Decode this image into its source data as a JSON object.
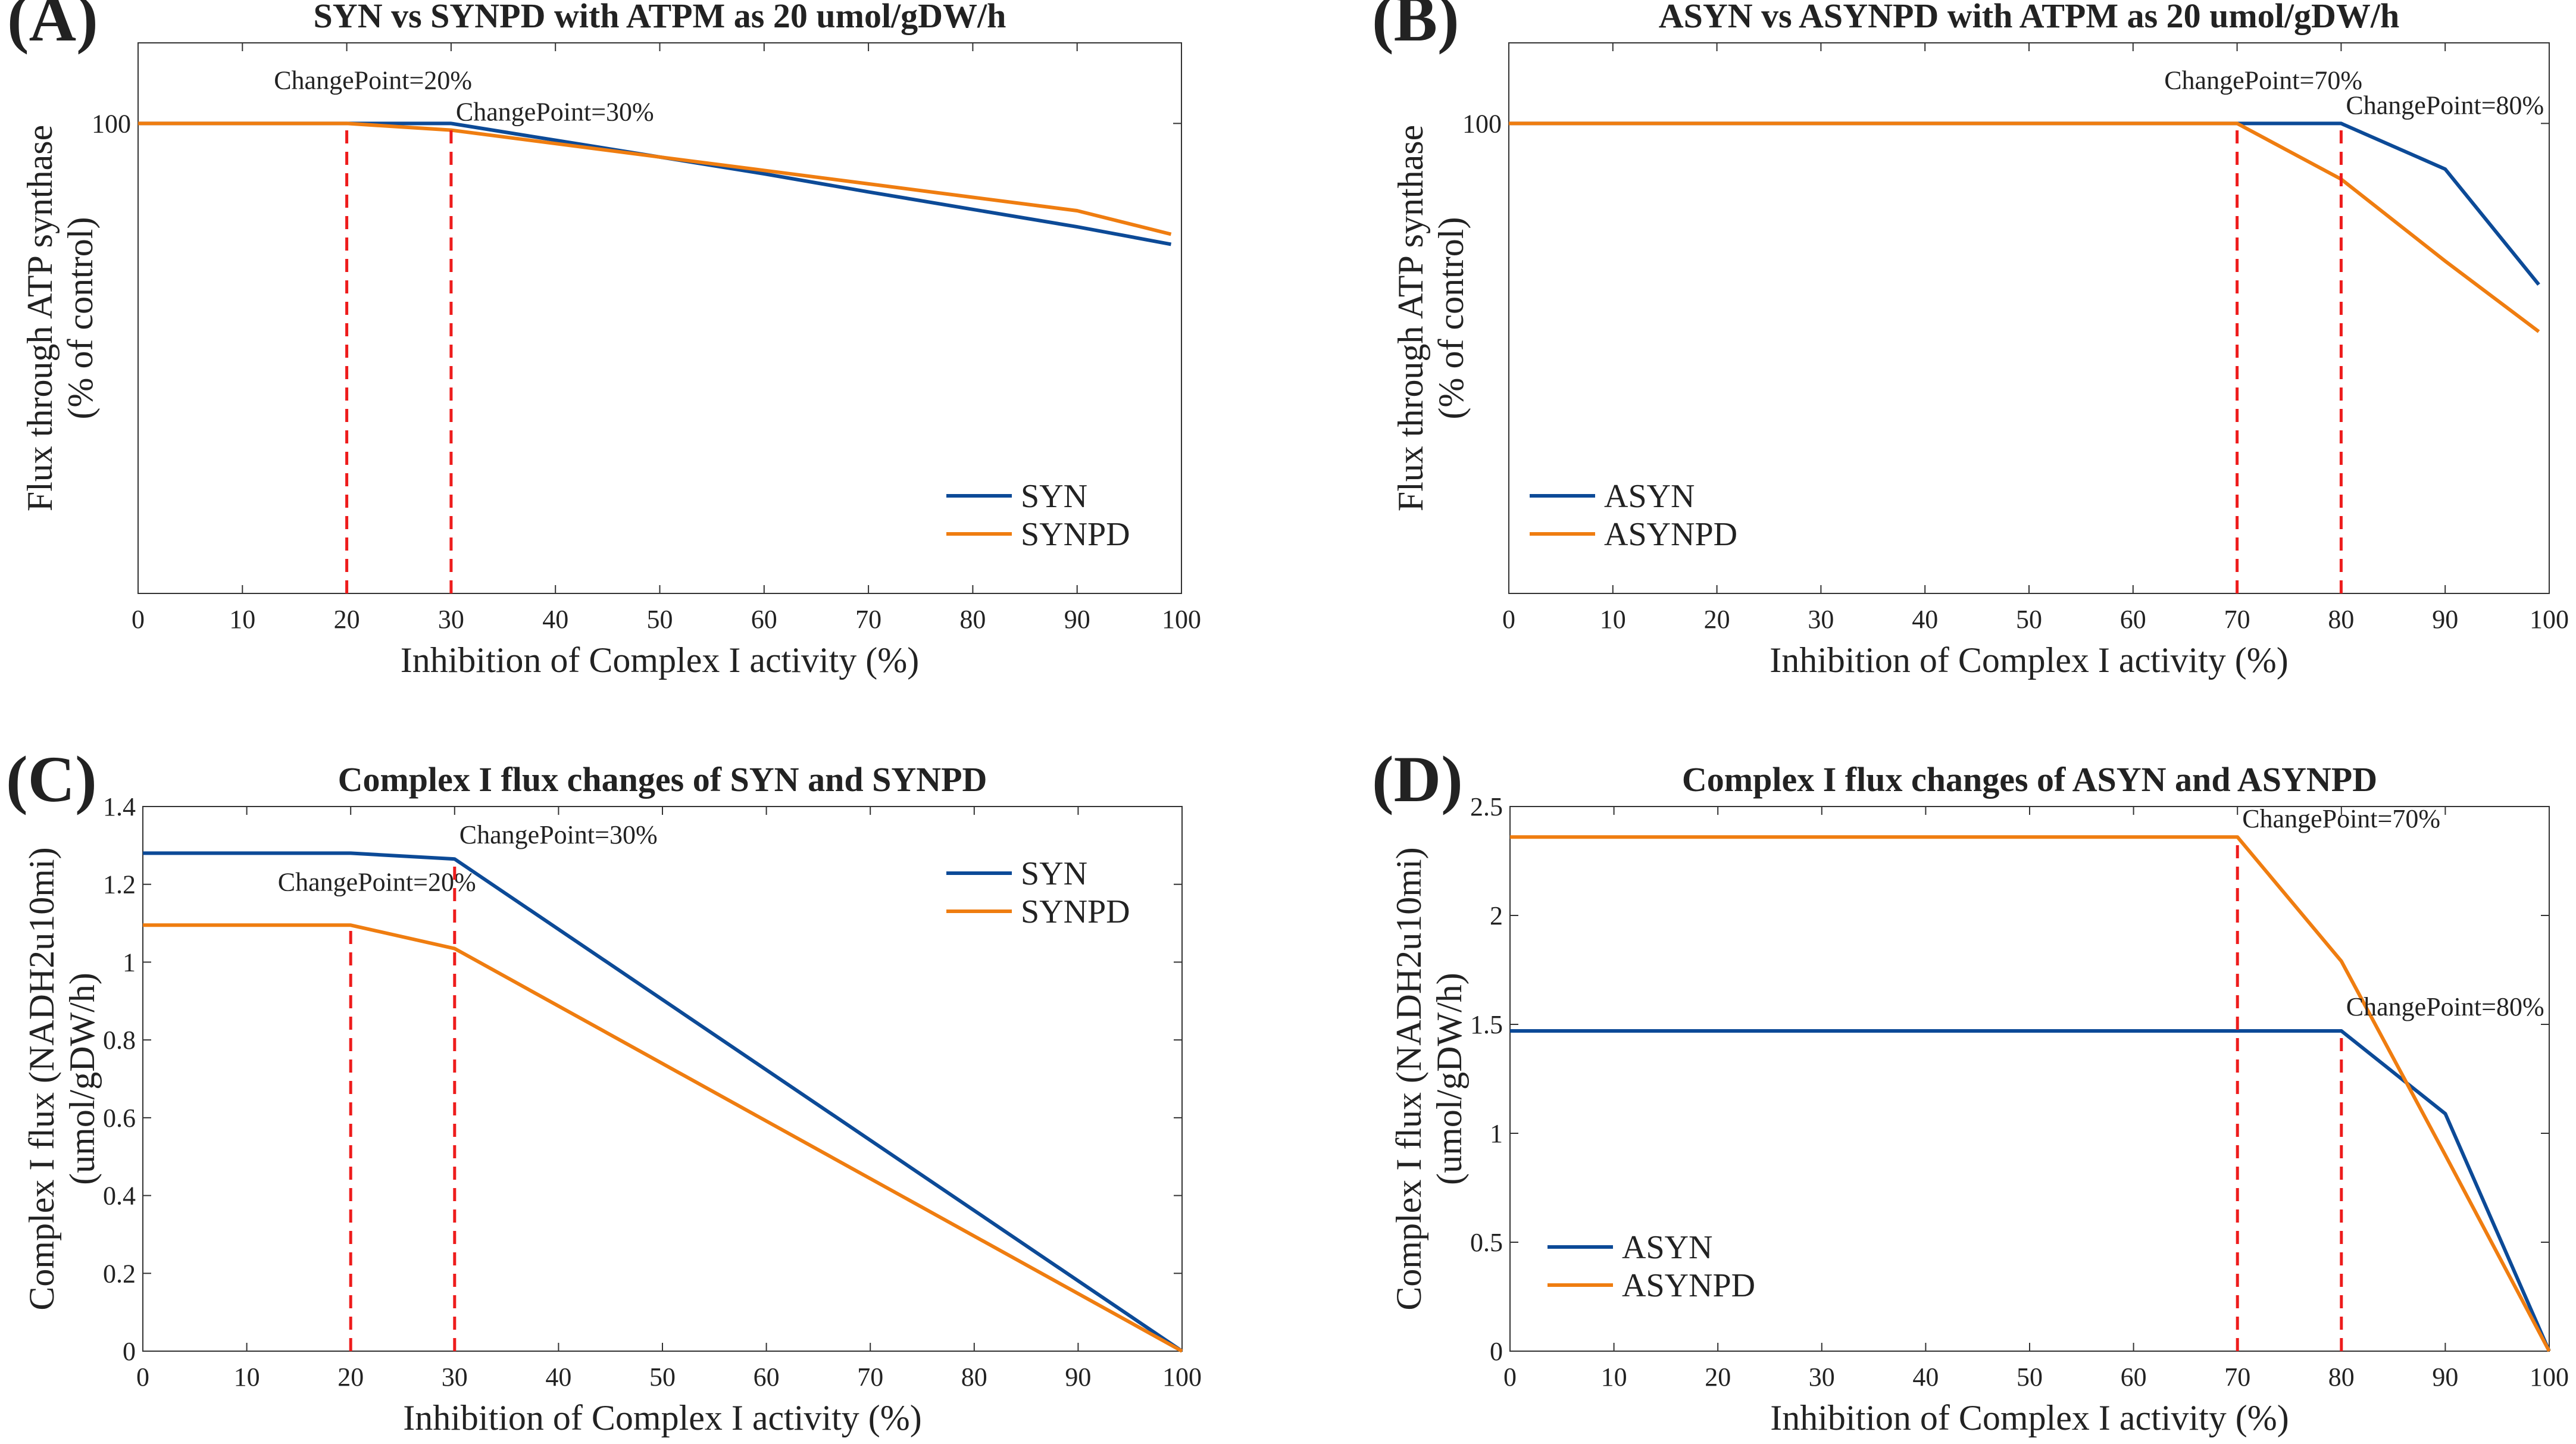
{
  "colors": {
    "blue": "#0c4a97",
    "orange": "#ef7d10",
    "changepoint": "#ee1c1c"
  },
  "chart_data": [
    {
      "type": "line",
      "panel": "(A)",
      "title": "SYN vs SYNPD with ATPM as 20 umol/gDW/h",
      "xlabel": "Inhibition of Complex I activity (%)",
      "ylabel_lines": [
        "Flux through ATP synthase",
        "(% of control)"
      ],
      "xlim": [
        0,
        100
      ],
      "ylim": [
        30,
        112
      ],
      "xticks": [
        0,
        10,
        20,
        30,
        40,
        50,
        60,
        70,
        80,
        90,
        100
      ],
      "xtick_labels": [
        "0",
        "10",
        "20",
        "30",
        "40",
        "50",
        "60",
        "70",
        "80",
        "90",
        "100"
      ],
      "yticks": [
        100
      ],
      "ytick_labels": [
        "100"
      ],
      "legend": {
        "position": "bottom-right",
        "entries": [
          "SYN",
          "SYNPD"
        ]
      },
      "series": [
        {
          "name": "SYN",
          "color": "blue",
          "x": [
            0,
            20,
            30,
            40,
            50,
            60,
            70,
            80,
            90,
            99
          ],
          "y": [
            100,
            100,
            100,
            97.5,
            95,
            92.5,
            89.8,
            87.2,
            84.6,
            82
          ]
        },
        {
          "name": "SYNPD",
          "color": "orange",
          "x": [
            0,
            20,
            30,
            40,
            50,
            60,
            70,
            80,
            90,
            99
          ],
          "y": [
            100,
            100,
            99,
            97,
            95,
            93,
            91,
            89,
            87,
            83.5
          ]
        }
      ],
      "changepoints": [
        {
          "x": 20,
          "y": 100,
          "label": "ChangePoint=20%",
          "label_pos": "above"
        },
        {
          "x": 30,
          "y": 99,
          "label": "ChangePoint=30%",
          "label_pos": "right"
        }
      ]
    },
    {
      "type": "line",
      "panel": "(B)",
      "title": "ASYN vs ASYNPD with ATPM as 20 umol/gDW/h",
      "xlabel": "Inhibition of Complex I activity (%)",
      "ylabel_lines": [
        "Flux through ATP synthase",
        "(% of control)"
      ],
      "xlim": [
        0,
        100
      ],
      "ylim": [
        30,
        112
      ],
      "xticks": [
        0,
        10,
        20,
        30,
        40,
        50,
        60,
        70,
        80,
        90,
        100
      ],
      "xtick_labels": [
        "0",
        "10",
        "20",
        "30",
        "40",
        "50",
        "60",
        "70",
        "80",
        "90",
        "100"
      ],
      "yticks": [
        100
      ],
      "ytick_labels": [
        "100"
      ],
      "legend": {
        "position": "bottom-left",
        "entries": [
          "ASYN",
          "ASYNPD"
        ]
      },
      "series": [
        {
          "name": "ASYN",
          "color": "blue",
          "x": [
            0,
            70,
            80,
            90,
            99
          ],
          "y": [
            100,
            100,
            100,
            93.2,
            76
          ]
        },
        {
          "name": "ASYNPD",
          "color": "orange",
          "x": [
            0,
            70,
            80,
            90,
            99
          ],
          "y": [
            100,
            100,
            91.7,
            79.5,
            69
          ]
        }
      ],
      "changepoints": [
        {
          "x": 70,
          "y": 100,
          "label": "ChangePoint=70%",
          "label_pos": "above"
        },
        {
          "x": 80,
          "y": 100,
          "label": "ChangePoint=80%",
          "label_pos": "right"
        }
      ]
    },
    {
      "type": "line",
      "panel": "(C)",
      "title": "Complex I flux changes of SYN and SYNPD",
      "xlabel": "Inhibition of Complex I activity (%)",
      "ylabel_lines": [
        "Complex I flux (NADH2u10mi)",
        "(umol/gDW/h)"
      ],
      "xlim": [
        0,
        100
      ],
      "ylim": [
        0,
        1.4
      ],
      "xticks": [
        0,
        10,
        20,
        30,
        40,
        50,
        60,
        70,
        80,
        90,
        100
      ],
      "xtick_labels": [
        "0",
        "10",
        "20",
        "30",
        "40",
        "50",
        "60",
        "70",
        "80",
        "90",
        "100"
      ],
      "yticks": [
        0,
        0.2,
        0.4,
        0.6,
        0.8,
        1,
        1.2,
        1.4
      ],
      "ytick_labels": [
        "0",
        "0.2",
        "0.4",
        "0.6",
        "0.8",
        "1",
        "1.2",
        "1.4"
      ],
      "legend": {
        "position": "top-right",
        "entries": [
          "SYN",
          "SYNPD"
        ]
      },
      "series": [
        {
          "name": "SYN",
          "color": "blue",
          "x": [
            0,
            20,
            30,
            100
          ],
          "y": [
            1.28,
            1.28,
            1.265,
            0
          ]
        },
        {
          "name": "SYNPD",
          "color": "orange",
          "x": [
            0,
            20,
            30,
            100
          ],
          "y": [
            1.095,
            1.095,
            1.035,
            0
          ]
        }
      ],
      "changepoints": [
        {
          "x": 20,
          "y": 1.095,
          "label": "ChangePoint=20%",
          "label_pos": "above"
        },
        {
          "x": 30,
          "y": 1.265,
          "label": "ChangePoint=30%",
          "label_pos": "above-right"
        }
      ]
    },
    {
      "type": "line",
      "panel": "(D)",
      "title": "Complex I flux changes of ASYN and ASYNPD",
      "xlabel": "Inhibition of Complex I activity (%)",
      "ylabel_lines": [
        "Complex I flux (NADH2u10mi)",
        "(umol/gDW/h)"
      ],
      "xlim": [
        0,
        100
      ],
      "ylim": [
        0,
        2.5
      ],
      "xticks": [
        0,
        10,
        20,
        30,
        40,
        50,
        60,
        70,
        80,
        90,
        100
      ],
      "xtick_labels": [
        "0",
        "10",
        "20",
        "30",
        "40",
        "50",
        "60",
        "70",
        "80",
        "90",
        "100"
      ],
      "yticks": [
        0,
        0.5,
        1,
        1.5,
        2,
        2.5
      ],
      "ytick_labels": [
        "0",
        "0.5",
        "1",
        "1.5",
        "2",
        "2.5"
      ],
      "legend": {
        "position": "bottom-left",
        "entries": [
          "ASYN",
          "ASYNPD"
        ]
      },
      "series": [
        {
          "name": "ASYN",
          "color": "blue",
          "x": [
            0,
            70,
            80,
            90,
            100
          ],
          "y": [
            1.47,
            1.47,
            1.47,
            1.09,
            0
          ]
        },
        {
          "name": "ASYNPD",
          "color": "orange",
          "x": [
            0,
            70,
            80,
            90,
            100
          ],
          "y": [
            2.36,
            2.36,
            1.79,
            0.9,
            0
          ]
        }
      ],
      "changepoints": [
        {
          "x": 70,
          "y": 2.36,
          "label": "ChangePoint=70%",
          "label_pos": "right"
        },
        {
          "x": 80,
          "y": 1.47,
          "label": "ChangePoint=80%",
          "label_pos": "above-right"
        }
      ]
    }
  ]
}
